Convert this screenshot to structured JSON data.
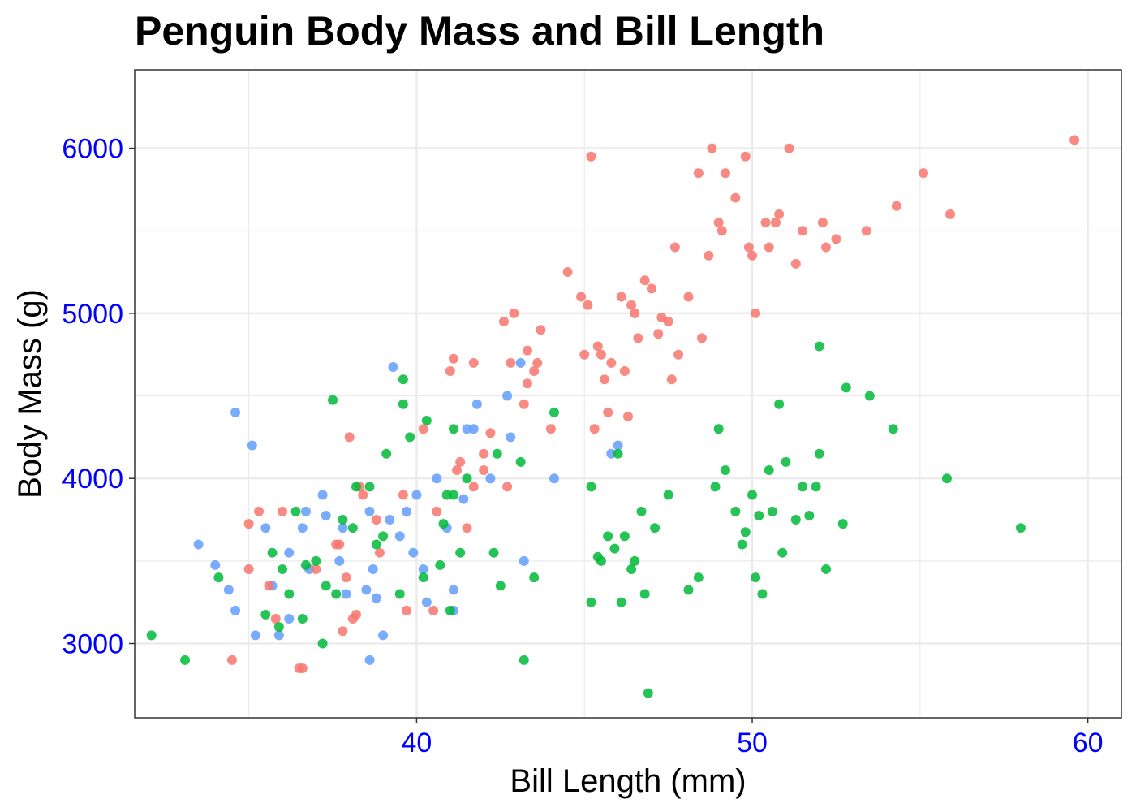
{
  "chart_data": {
    "type": "scatter",
    "title": "Penguin Body Mass and Bill Length",
    "xlabel": "Bill Length (mm)",
    "ylabel": "Body Mass (g)",
    "xlim": [
      31.6,
      61.0
    ],
    "ylim": [
      2550,
      6475
    ],
    "x_ticks": [
      40,
      50,
      60
    ],
    "y_ticks": [
      3000,
      4000,
      5000,
      6000
    ],
    "x_minor_gridlines": [
      35,
      45,
      55
    ],
    "y_minor_gridlines": [
      3500,
      4500,
      5500
    ],
    "grid": true,
    "legend": "none",
    "colors": {
      "tick_labels": "#0000ff",
      "grid": "#ebebeb",
      "panel_border": "#333333"
    },
    "series": [
      {
        "color": "#619cff",
        "points": [
          [
            33.5,
            3600
          ],
          [
            34.0,
            3475
          ],
          [
            34.4,
            3325
          ],
          [
            34.6,
            3200
          ],
          [
            34.6,
            4400
          ],
          [
            35.1,
            4200
          ],
          [
            35.2,
            3050
          ],
          [
            35.5,
            3700
          ],
          [
            35.7,
            3350
          ],
          [
            35.9,
            3050
          ],
          [
            36.2,
            3550
          ],
          [
            36.2,
            3150
          ],
          [
            36.6,
            3700
          ],
          [
            36.7,
            3800
          ],
          [
            36.8,
            3450
          ],
          [
            37.2,
            3900
          ],
          [
            37.3,
            3775
          ],
          [
            37.7,
            3500
          ],
          [
            37.8,
            3700
          ],
          [
            37.9,
            3300
          ],
          [
            38.5,
            3325
          ],
          [
            38.6,
            3800
          ],
          [
            38.6,
            2900
          ],
          [
            38.7,
            3450
          ],
          [
            38.8,
            3275
          ],
          [
            39.0,
            3050
          ],
          [
            39.2,
            3750
          ],
          [
            39.3,
            4675
          ],
          [
            39.5,
            3650
          ],
          [
            39.7,
            3800
          ],
          [
            39.9,
            3550
          ],
          [
            40.0,
            3900
          ],
          [
            40.2,
            3450
          ],
          [
            40.3,
            3250
          ],
          [
            40.6,
            4000
          ],
          [
            40.9,
            3700
          ],
          [
            41.1,
            3325
          ],
          [
            41.1,
            3200
          ],
          [
            41.4,
            3875
          ],
          [
            41.5,
            4300
          ],
          [
            41.7,
            4300
          ],
          [
            41.8,
            4450
          ],
          [
            42.2,
            4000
          ],
          [
            42.7,
            4500
          ],
          [
            42.8,
            4250
          ],
          [
            43.1,
            4700
          ],
          [
            43.2,
            3500
          ],
          [
            44.1,
            4000
          ],
          [
            45.8,
            4150
          ],
          [
            46.0,
            4200
          ]
        ]
      },
      {
        "color": "#f8766d",
        "points": [
          [
            34.5,
            2900
          ],
          [
            35.0,
            3450
          ],
          [
            35.0,
            3725
          ],
          [
            35.3,
            3800
          ],
          [
            35.6,
            3350
          ],
          [
            35.8,
            3150
          ],
          [
            36.0,
            3800
          ],
          [
            36.5,
            2850
          ],
          [
            36.6,
            2850
          ],
          [
            37.0,
            3450
          ],
          [
            37.6,
            3600
          ],
          [
            37.7,
            3600
          ],
          [
            37.8,
            3075
          ],
          [
            37.9,
            3400
          ],
          [
            38.0,
            4250
          ],
          [
            38.1,
            3150
          ],
          [
            38.2,
            3175
          ],
          [
            38.3,
            3950
          ],
          [
            38.4,
            3900
          ],
          [
            38.8,
            3750
          ],
          [
            38.9,
            3550
          ],
          [
            39.6,
            3900
          ],
          [
            39.7,
            3200
          ],
          [
            40.2,
            4300
          ],
          [
            40.5,
            3200
          ],
          [
            40.6,
            3800
          ],
          [
            41.0,
            4650
          ],
          [
            41.1,
            4725
          ],
          [
            41.2,
            4050
          ],
          [
            41.3,
            4100
          ],
          [
            41.5,
            3700
          ],
          [
            41.7,
            3950
          ],
          [
            41.7,
            4700
          ],
          [
            42.0,
            4050
          ],
          [
            42.0,
            4150
          ],
          [
            42.2,
            4275
          ],
          [
            42.6,
            4950
          ],
          [
            42.7,
            3950
          ],
          [
            42.8,
            4700
          ],
          [
            42.9,
            5000
          ],
          [
            43.2,
            4450
          ],
          [
            43.3,
            4575
          ],
          [
            43.3,
            4775
          ],
          [
            43.5,
            4650
          ],
          [
            43.6,
            4700
          ],
          [
            43.7,
            4900
          ],
          [
            44.0,
            4300
          ],
          [
            44.5,
            5250
          ],
          [
            44.9,
            5100
          ],
          [
            45.0,
            4750
          ],
          [
            45.1,
            5050
          ],
          [
            45.2,
            5950
          ],
          [
            45.3,
            4300
          ],
          [
            45.4,
            4800
          ],
          [
            45.5,
            4750
          ],
          [
            45.6,
            4600
          ],
          [
            45.7,
            4400
          ],
          [
            45.8,
            4700
          ],
          [
            46.1,
            5100
          ],
          [
            46.2,
            4650
          ],
          [
            46.3,
            4375
          ],
          [
            46.4,
            5050
          ],
          [
            46.5,
            5000
          ],
          [
            46.6,
            4850
          ],
          [
            46.8,
            5200
          ],
          [
            47.0,
            5150
          ],
          [
            47.2,
            4875
          ],
          [
            47.3,
            4975
          ],
          [
            47.5,
            4950
          ],
          [
            47.6,
            4600
          ],
          [
            47.7,
            5400
          ],
          [
            47.8,
            4750
          ],
          [
            48.1,
            5100
          ],
          [
            48.4,
            5850
          ],
          [
            48.5,
            4850
          ],
          [
            48.7,
            5350
          ],
          [
            48.8,
            6000
          ],
          [
            49.0,
            5550
          ],
          [
            49.1,
            5500
          ],
          [
            49.2,
            5850
          ],
          [
            49.5,
            5700
          ],
          [
            49.8,
            5950
          ],
          [
            49.9,
            5400
          ],
          [
            50.0,
            5350
          ],
          [
            50.1,
            5000
          ],
          [
            50.4,
            5550
          ],
          [
            50.5,
            5400
          ],
          [
            50.7,
            5550
          ],
          [
            50.8,
            5600
          ],
          [
            51.1,
            6000
          ],
          [
            51.3,
            5300
          ],
          [
            51.5,
            5500
          ],
          [
            52.1,
            5550
          ],
          [
            52.2,
            5400
          ],
          [
            52.5,
            5450
          ],
          [
            53.4,
            5500
          ],
          [
            54.3,
            5650
          ],
          [
            55.1,
            5850
          ],
          [
            55.9,
            5600
          ],
          [
            59.6,
            6050
          ]
        ]
      },
      {
        "color": "#00ba38",
        "points": [
          [
            32.1,
            3050
          ],
          [
            33.1,
            2900
          ],
          [
            34.1,
            3400
          ],
          [
            35.5,
            3175
          ],
          [
            35.7,
            3550
          ],
          [
            35.9,
            3100
          ],
          [
            36.0,
            3450
          ],
          [
            36.2,
            3300
          ],
          [
            36.4,
            3800
          ],
          [
            36.6,
            3150
          ],
          [
            36.7,
            3475
          ],
          [
            37.0,
            3500
          ],
          [
            37.2,
            3000
          ],
          [
            37.3,
            3350
          ],
          [
            37.5,
            4475
          ],
          [
            37.6,
            3300
          ],
          [
            37.8,
            3750
          ],
          [
            38.1,
            3700
          ],
          [
            38.2,
            3950
          ],
          [
            38.6,
            3950
          ],
          [
            38.8,
            3600
          ],
          [
            39.0,
            3650
          ],
          [
            39.1,
            4150
          ],
          [
            39.5,
            3300
          ],
          [
            39.6,
            4600
          ],
          [
            39.6,
            4450
          ],
          [
            39.8,
            4250
          ],
          [
            40.2,
            3400
          ],
          [
            40.3,
            4350
          ],
          [
            40.7,
            3475
          ],
          [
            40.8,
            3725
          ],
          [
            40.9,
            3900
          ],
          [
            41.0,
            3200
          ],
          [
            41.1,
            3900
          ],
          [
            41.1,
            4300
          ],
          [
            41.3,
            3550
          ],
          [
            41.5,
            4000
          ],
          [
            42.3,
            3550
          ],
          [
            42.4,
            4150
          ],
          [
            42.5,
            3350
          ],
          [
            43.1,
            4100
          ],
          [
            43.2,
            2900
          ],
          [
            43.5,
            3400
          ],
          [
            44.1,
            4400
          ],
          [
            45.2,
            3950
          ],
          [
            45.2,
            3250
          ],
          [
            45.4,
            3525
          ],
          [
            45.5,
            3500
          ],
          [
            45.7,
            3650
          ],
          [
            45.9,
            3575
          ],
          [
            46.0,
            4150
          ],
          [
            46.1,
            3250
          ],
          [
            46.2,
            3650
          ],
          [
            46.4,
            3450
          ],
          [
            46.5,
            3500
          ],
          [
            46.7,
            3800
          ],
          [
            46.8,
            3300
          ],
          [
            46.9,
            2700
          ],
          [
            47.1,
            3700
          ],
          [
            47.5,
            3900
          ],
          [
            48.1,
            3325
          ],
          [
            48.4,
            3400
          ],
          [
            48.9,
            3950
          ],
          [
            49.0,
            4300
          ],
          [
            49.2,
            4050
          ],
          [
            49.5,
            3800
          ],
          [
            49.7,
            3600
          ],
          [
            49.8,
            3675
          ],
          [
            50.0,
            3900
          ],
          [
            50.1,
            3400
          ],
          [
            50.2,
            3775
          ],
          [
            50.3,
            3300
          ],
          [
            50.5,
            4050
          ],
          [
            50.6,
            3800
          ],
          [
            50.8,
            4450
          ],
          [
            50.9,
            3550
          ],
          [
            51.0,
            4100
          ],
          [
            51.3,
            3750
          ],
          [
            51.5,
            3950
          ],
          [
            51.7,
            3775
          ],
          [
            51.9,
            3950
          ],
          [
            52.0,
            4150
          ],
          [
            52.2,
            3450
          ],
          [
            52.7,
            3725
          ],
          [
            52.8,
            4550
          ],
          [
            53.5,
            4500
          ],
          [
            54.2,
            4300
          ],
          [
            55.8,
            4000
          ],
          [
            58.0,
            3700
          ],
          [
            52.0,
            4800
          ]
        ]
      }
    ]
  }
}
